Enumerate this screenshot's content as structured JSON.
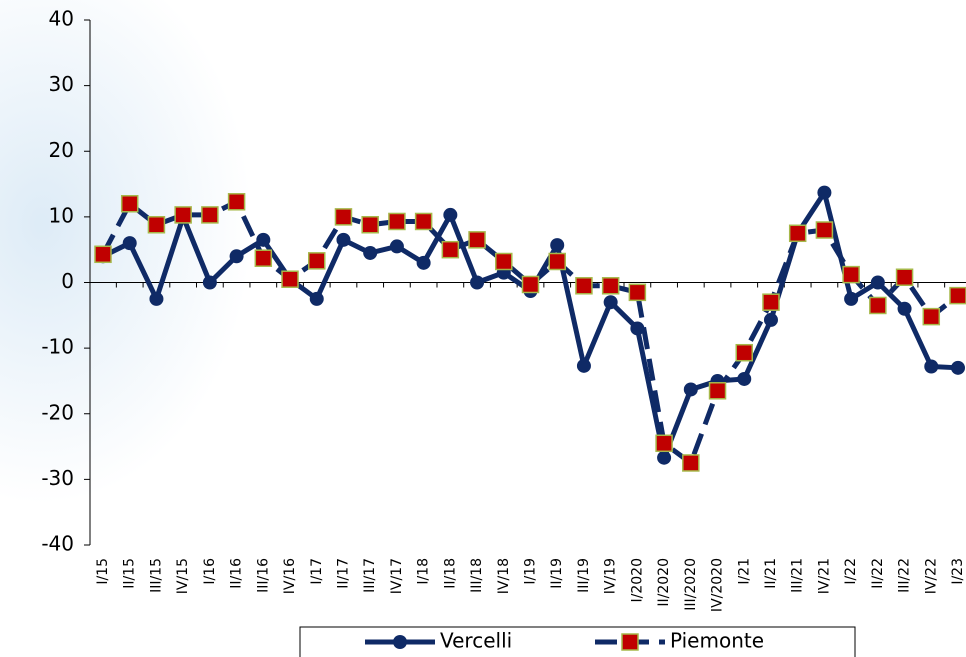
{
  "chart_data": {
    "type": "line",
    "categories": [
      "I/15",
      "II/15",
      "III/15",
      "IV/15",
      "I/16",
      "II/16",
      "III/16",
      "IV/16",
      "I/17",
      "II/17",
      "III/17",
      "IV/17",
      "I/18",
      "II/18",
      "III/18",
      "IV/18",
      "I/19",
      "II/19",
      "III/19",
      "IV/19",
      "I/2020",
      "II/2020",
      "III/2020",
      "IV/2020",
      "I/21",
      "II/21",
      "III/21",
      "IV/21",
      "I/22",
      "II/22",
      "III/22",
      "IV/22",
      "I/23"
    ],
    "series": [
      {
        "name": "Vercelli",
        "color": "#0f2a66",
        "dashed": false,
        "marker": "circle",
        "values": [
          4,
          6,
          -2.5,
          10,
          0,
          4,
          6.5,
          0.5,
          -2.5,
          6.5,
          4.5,
          5.5,
          3,
          10.3,
          0,
          1.5,
          -1.3,
          5.7,
          -12.7,
          -3,
          -7,
          -26.7,
          -16.3,
          -15,
          -14.7,
          -5.7,
          7.5,
          13.7,
          -2.5,
          0,
          -4,
          -12.8,
          -13
        ]
      },
      {
        "name": "Piemonte",
        "color": "#0f2a66",
        "marker_fill": "#c00000",
        "marker_stroke": "#a6b84a",
        "dashed": true,
        "marker": "square",
        "values": [
          4.3,
          12,
          8.8,
          10.3,
          10.3,
          12.3,
          3.7,
          0.5,
          3.3,
          10,
          8.8,
          9.3,
          9.3,
          5,
          6.5,
          3.2,
          -0.3,
          3.2,
          -0.5,
          -0.5,
          -1.5,
          -24.5,
          -27.5,
          -16.5,
          -10.7,
          -3,
          7.5,
          8,
          1.2,
          -3.5,
          0.8,
          -5.2,
          -2
        ]
      }
    ],
    "ylim": [
      -40,
      40
    ],
    "yticks": [
      -40,
      -30,
      -20,
      -10,
      0,
      10,
      20,
      30,
      40
    ],
    "legend": "bottom"
  }
}
